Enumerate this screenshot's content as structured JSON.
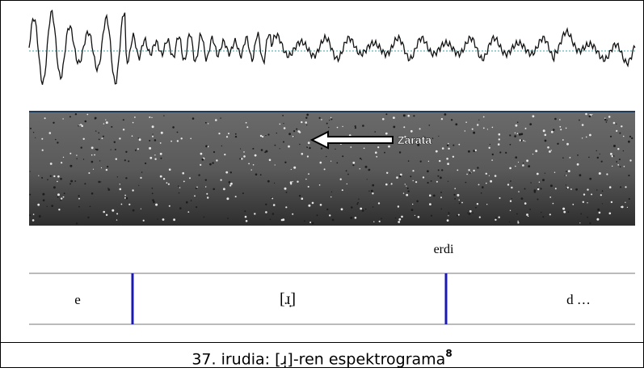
{
  "figure": {
    "annotation": "Zarata",
    "word": "erdi",
    "segments": [
      "e",
      "[ɹ̣]",
      "d …"
    ]
  },
  "caption": {
    "text": "37. irudia: [ɹ̣]-ren espektrograma",
    "footnote": "8"
  }
}
